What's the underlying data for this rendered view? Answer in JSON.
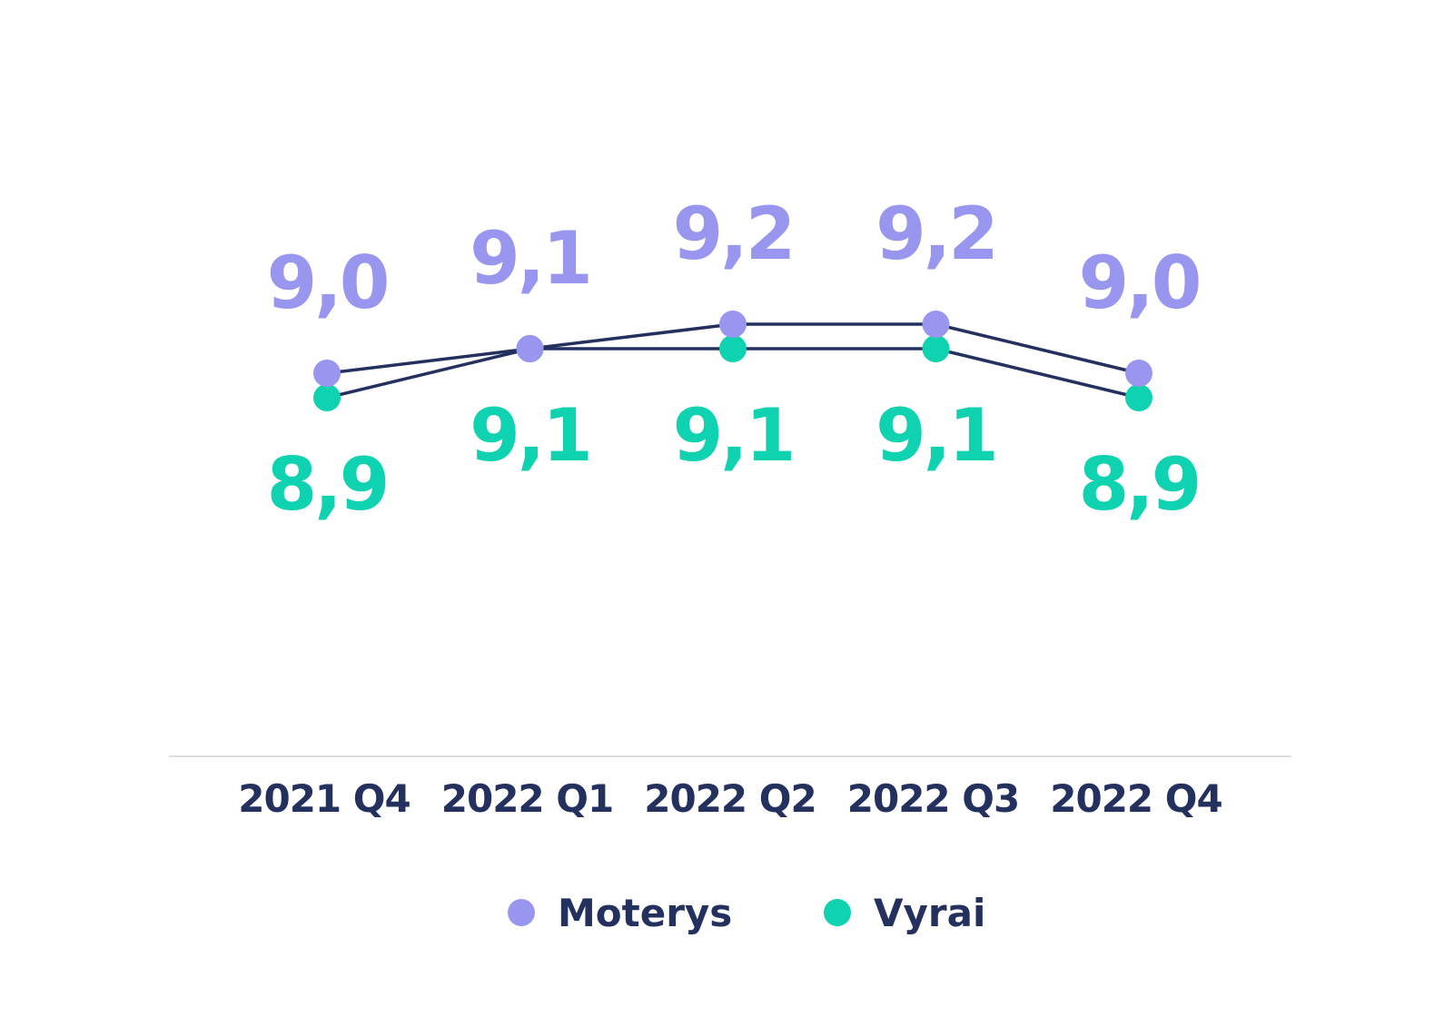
{
  "chart_data": {
    "type": "line",
    "categories": [
      "2021 Q4",
      "2022 Q1",
      "2022 Q2",
      "2022 Q3",
      "2022 Q4"
    ],
    "series": [
      {
        "name": "Moterys",
        "values": [
          9.0,
          9.1,
          9.2,
          9.2,
          9.0
        ],
        "labels": [
          "9,0",
          "9,1",
          "9,2",
          "9,2",
          "9,0"
        ],
        "color": "#9896ee",
        "label_position": "above"
      },
      {
        "name": "Vyrai",
        "values": [
          8.9,
          9.1,
          9.1,
          9.1,
          8.9
        ],
        "labels": [
          "8,9",
          "9,1",
          "9,1",
          "9,1",
          "8,9"
        ],
        "color": "#0fd2b0",
        "label_position": "below"
      }
    ],
    "line_color": "#24305e",
    "axis_color": "#dcdcdc",
    "text_color": "#24305e",
    "grid": false,
    "legend_position": "bottom-center"
  }
}
